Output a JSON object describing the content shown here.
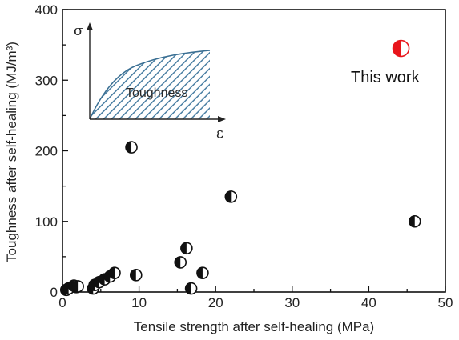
{
  "chart_data": {
    "type": "scatter",
    "xlabel": "Tensile strength after self-healing (MPa)",
    "ylabel": "Toughness after self-healing (MJ/m³)",
    "xlim": [
      0,
      50
    ],
    "ylim": [
      0,
      400
    ],
    "xticks": [
      "0",
      "10",
      "20",
      "30",
      "40",
      "50"
    ],
    "yticks": [
      "0",
      "100",
      "200",
      "300",
      "400"
    ],
    "grid": false,
    "marker": "half-filled-circle",
    "colors": {
      "points": "#111111",
      "highlight": "#e8151b",
      "inset_fill": "#4a7fa3"
    },
    "series": [
      {
        "points": [
          [
            0.5,
            3
          ],
          [
            0.8,
            5
          ],
          [
            1.5,
            9
          ],
          [
            1.8,
            7
          ],
          [
            2.0,
            8
          ],
          [
            4.0,
            5
          ],
          [
            4.2,
            10
          ],
          [
            4.8,
            14
          ],
          [
            5.5,
            18
          ],
          [
            6.2,
            22
          ],
          [
            6.8,
            27
          ],
          [
            9.0,
            205
          ],
          [
            9.6,
            24
          ],
          [
            15.4,
            42
          ],
          [
            16.2,
            62
          ],
          [
            16.8,
            5
          ],
          [
            18.3,
            27
          ],
          [
            22.0,
            135
          ],
          [
            46.0,
            100
          ]
        ]
      },
      {
        "name": "This work",
        "points": [
          [
            44.2,
            345
          ]
        ]
      }
    ],
    "annotations": [
      "This work"
    ],
    "inset": {
      "ylabel": "σ",
      "xlabel": "ε",
      "label": "Toughness"
    }
  }
}
